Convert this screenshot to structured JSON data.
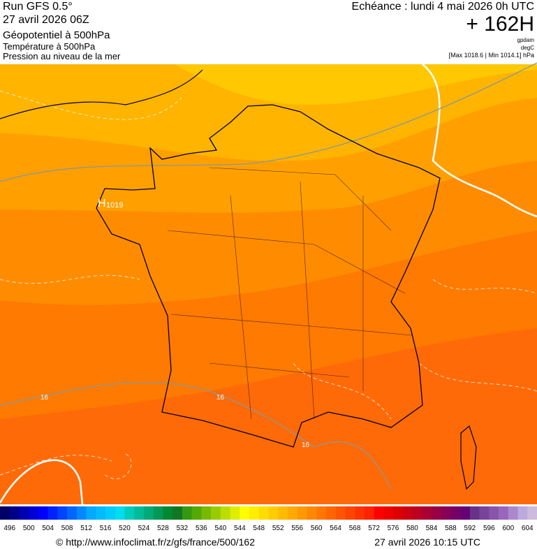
{
  "header": {
    "title": "Run GFS 0.5°",
    "run_date": "27 avril 2026 06Z",
    "fields": [
      "Géopotentiel à 500hPa",
      "Température à 500hPa",
      "Pression au niveau de la mer"
    ]
  },
  "forecast": {
    "echeance": "Echéance : lundi 4 mai 2026 0h UTC",
    "lead": "+ 162H",
    "units": [
      "gpdam",
      "degC"
    ],
    "range": "[Max 1018.6 | Min 1014.1] hPa"
  },
  "map_labels": {
    "high": "H",
    "high_value": "1019",
    "isotherms": [
      "16",
      "16",
      "16"
    ]
  },
  "colorbar": {
    "labels": [
      496,
      500,
      504,
      508,
      512,
      516,
      520,
      524,
      528,
      532,
      536,
      540,
      544,
      548,
      552,
      556,
      560,
      564,
      568,
      572,
      576,
      580,
      584,
      588,
      592,
      596,
      600,
      604
    ],
    "colors": [
      "#000066",
      "#00008a",
      "#0000b0",
      "#0000d6",
      "#0000ff",
      "#0022ff",
      "#0044ff",
      "#0066ff",
      "#0088ff",
      "#00aaff",
      "#00bbff",
      "#00ccff",
      "#00ddee",
      "#00ccbb",
      "#00bb99",
      "#00aa77",
      "#009955",
      "#008833",
      "#117722",
      "#339911",
      "#55aa00",
      "#77bb00",
      "#99cc00",
      "#bbdd00",
      "#ddee00",
      "#ffff00",
      "#ffee00",
      "#ffdd00",
      "#ffcc00",
      "#ffbb00",
      "#ffaa00",
      "#ff9900",
      "#ff8800",
      "#ff7700",
      "#ff6600",
      "#ff5500",
      "#ff4400",
      "#ff3300",
      "#ff2200",
      "#ff0000",
      "#ee0000",
      "#dd0000",
      "#cc0011",
      "#bb0022",
      "#aa0033",
      "#990044",
      "#880055",
      "#770066",
      "#660077",
      "#663388",
      "#774499",
      "#8855aa",
      "#9966bb",
      "#aa88cc",
      "#bbaadd",
      "#ccbbdd"
    ]
  },
  "footer": {
    "url": "© http://www.infoclimat.fr/z/gfs/france/500/162",
    "generated": "27 avril 2026 10:15 UTC"
  }
}
